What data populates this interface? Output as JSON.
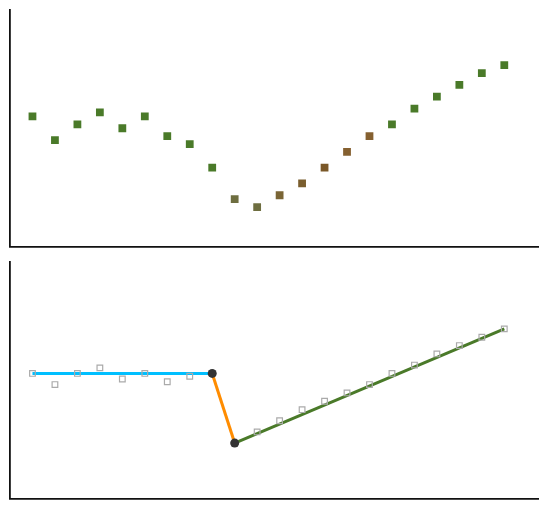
{
  "chart_data": [
    {
      "type": "scatter",
      "x": [
        1,
        2,
        3,
        4,
        5,
        6,
        7,
        8,
        9,
        10,
        11,
        12,
        13,
        14,
        15,
        16,
        17,
        18,
        19,
        20,
        21,
        22
      ],
      "series": [
        {
          "values": [
            6.8,
            6.2,
            6.6,
            6.9,
            6.5,
            6.8,
            6.3,
            6.1,
            5.5,
            4.7,
            4.5,
            4.8,
            5.1,
            5.5,
            5.9,
            6.3,
            6.6,
            7.0,
            7.3,
            7.6,
            7.9,
            8.1
          ],
          "colors": [
            "#4a7a29",
            "#4a7a29",
            "#4a7a29",
            "#4a7a29",
            "#4a7a29",
            "#4a7a29",
            "#4a7a29",
            "#4a7a29",
            "#4a7a29",
            "#6e6e40",
            "#6e6e40",
            "#7a6535",
            "#7a5e2e",
            "#7a5828",
            "#856030",
            "#856030",
            "#4a7a29",
            "#4a7a29",
            "#4a7a29",
            "#4a7a29",
            "#4a7a29",
            "#4a7a29"
          ],
          "marker": "square"
        }
      ],
      "xlim": [
        0,
        23.5
      ],
      "ylim": [
        3.5,
        9.5
      ],
      "grid": false,
      "tick_labels": false
    },
    {
      "type": "scatter",
      "series": [
        {
          "x": [
            1,
            2,
            3,
            4,
            5,
            6,
            7,
            8,
            9,
            10,
            11,
            12,
            13,
            14,
            15,
            16,
            17,
            18,
            19,
            20,
            21,
            22
          ],
          "values": [
            7.5,
            7.1,
            7.5,
            7.7,
            7.3,
            7.5,
            7.2,
            7.4,
            7.5,
            5.0,
            5.4,
            5.8,
            6.2,
            6.5,
            6.8,
            7.1,
            7.5,
            7.8,
            8.2,
            8.5,
            8.8,
            9.1
          ],
          "color": "#aaaaaa",
          "marker": "square-open"
        },
        {
          "type": "line",
          "x": [
            1,
            9
          ],
          "values": [
            7.5,
            7.5
          ],
          "color": "#00bfff"
        },
        {
          "type": "line",
          "x": [
            9,
            10
          ],
          "values": [
            7.5,
            5.0
          ],
          "color": "#ff8c00"
        },
        {
          "type": "line",
          "x": [
            10,
            22
          ],
          "values": [
            5.0,
            9.1
          ],
          "color": "#4a7a29"
        },
        {
          "x": [
            9,
            10
          ],
          "values": [
            7.5,
            5.0
          ],
          "color": "#333333",
          "marker": "circle"
        }
      ],
      "xlim": [
        0,
        23.5
      ],
      "ylim": [
        3.0,
        11.5
      ],
      "grid": false,
      "tick_labels": false
    }
  ]
}
